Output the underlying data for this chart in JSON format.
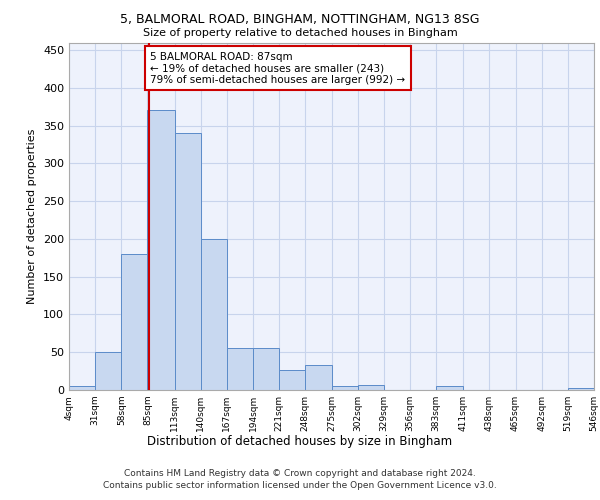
{
  "title_line1": "5, BALMORAL ROAD, BINGHAM, NOTTINGHAM, NG13 8SG",
  "title_line2": "Size of property relative to detached houses in Bingham",
  "xlabel": "Distribution of detached houses by size in Bingham",
  "ylabel": "Number of detached properties",
  "footer_line1": "Contains HM Land Registry data © Crown copyright and database right 2024.",
  "footer_line2": "Contains public sector information licensed under the Open Government Licence v3.0.",
  "annotation_line1": "5 BALMORAL ROAD: 87sqm",
  "annotation_line2": "← 19% of detached houses are smaller (243)",
  "annotation_line3": "79% of semi-detached houses are larger (992) →",
  "property_size": 87,
  "bar_color": "#c8d8f0",
  "bar_edge_color": "#5b8bc9",
  "vline_color": "#cc0000",
  "background_color": "#eef2fc",
  "tick_labels": [
    "4sqm",
    "31sqm",
    "58sqm",
    "85sqm",
    "113sqm",
    "140sqm",
    "167sqm",
    "194sqm",
    "221sqm",
    "248sqm",
    "275sqm",
    "302sqm",
    "329sqm",
    "356sqm",
    "383sqm",
    "411sqm",
    "438sqm",
    "465sqm",
    "492sqm",
    "519sqm",
    "546sqm"
  ],
  "bin_edges": [
    4,
    31,
    58,
    85,
    113,
    140,
    167,
    194,
    221,
    248,
    275,
    302,
    329,
    356,
    383,
    411,
    438,
    465,
    492,
    519,
    546
  ],
  "bar_heights": [
    5,
    50,
    180,
    370,
    340,
    200,
    55,
    55,
    27,
    33,
    5,
    6,
    0,
    0,
    5,
    0,
    0,
    0,
    0,
    3
  ],
  "ylim": [
    0,
    460
  ],
  "yticks": [
    0,
    50,
    100,
    150,
    200,
    250,
    300,
    350,
    400,
    450
  ],
  "annotation_box_color": "white",
  "annotation_box_edge": "#cc0000",
  "grid_color": "#c8d4ec"
}
